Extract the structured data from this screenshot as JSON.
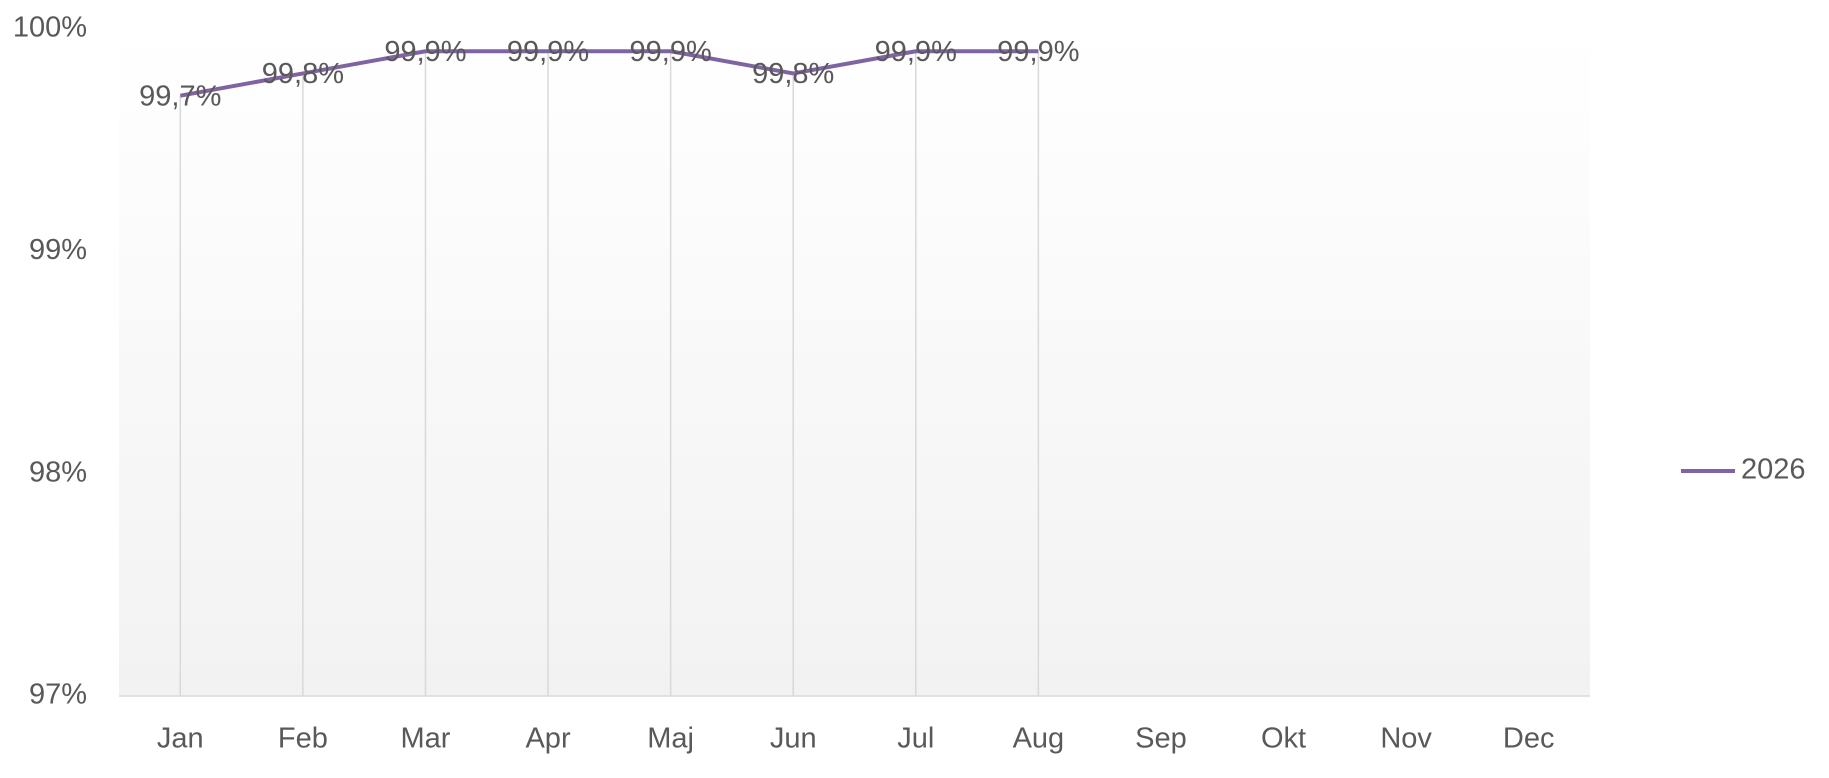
{
  "chart_data": {
    "type": "line",
    "categories": [
      "Jan",
      "Feb",
      "Mar",
      "Apr",
      "Maj",
      "Jun",
      "Jul",
      "Aug",
      "Sep",
      "Okt",
      "Nov",
      "Dec"
    ],
    "series": [
      {
        "name": "2026",
        "color": "#8064a2",
        "values": [
          99.7,
          99.8,
          99.9,
          99.9,
          99.9,
          99.8,
          99.9,
          99.9,
          null,
          null,
          null,
          null
        ],
        "value_labels": [
          "99,7%",
          "99,8%",
          "99,9%",
          "99,9%",
          "99,9%",
          "99,8%",
          "99,9%",
          "99,9%",
          null,
          null,
          null,
          null
        ]
      }
    ],
    "ylim": [
      97,
      100
    ],
    "yticks": [
      {
        "value": 97,
        "label": "97%"
      },
      {
        "value": 98,
        "label": "98%"
      },
      {
        "value": 99,
        "label": "99%"
      },
      {
        "value": 100,
        "label": "100%"
      }
    ],
    "drop_lines": true,
    "legend": "right"
  }
}
